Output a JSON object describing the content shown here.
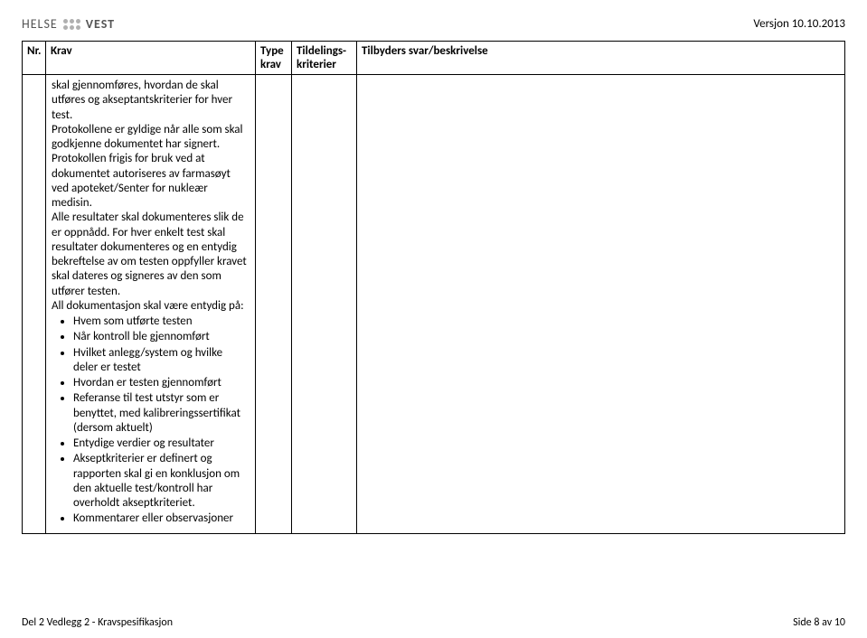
{
  "header": {
    "logo_part1": "HELSE",
    "logo_part2": "VEST",
    "version": "Versjon 10.10.2013"
  },
  "table": {
    "columns": {
      "nr": "Nr.",
      "krav": "Krav",
      "type": "Type krav",
      "tildeling": "Tildelings-kriterier",
      "svar": "Tilbyders svar/beskrivelse"
    }
  },
  "krav": {
    "para1": "skal gjennomføres, hvordan de skal utføres og akseptantskriterier for hver test.",
    "para2": "Protokollene er gyldige når alle som skal godkjenne dokumentet har signert. Protokollen frigis for bruk ved at dokumentet autoriseres av farmasøyt ved apoteket/Senter for nukleær medisin.",
    "para3": "Alle resultater skal dokumenteres slik de er oppnådd. For hver enkelt test skal resultater dokumenteres og en entydig bekreftelse av om testen oppfyller kravet skal dateres og signeres av den som utfører testen.",
    "para4": "All dokumentasjon skal være entydig på:",
    "bullets": [
      "Hvem som utførte testen",
      "Når kontroll ble gjennomført",
      "Hvilket anlegg/system og hvilke deler er testet",
      "Hvordan er testen gjennomført",
      "Referanse til test utstyr som er benyttet, med kalibreringssertifikat (dersom aktuelt)",
      "Entydige verdier og resultater",
      "Akseptkriterier er definert og rapporten skal gi en konklusjon om den aktuelle test/kontroll har overholdt akseptkriteriet.",
      "Kommentarer eller observasjoner"
    ]
  },
  "footer": {
    "left": "Del 2 Vedlegg 2 - Kravspesifikasjon",
    "right": "Side 8 av 10"
  }
}
